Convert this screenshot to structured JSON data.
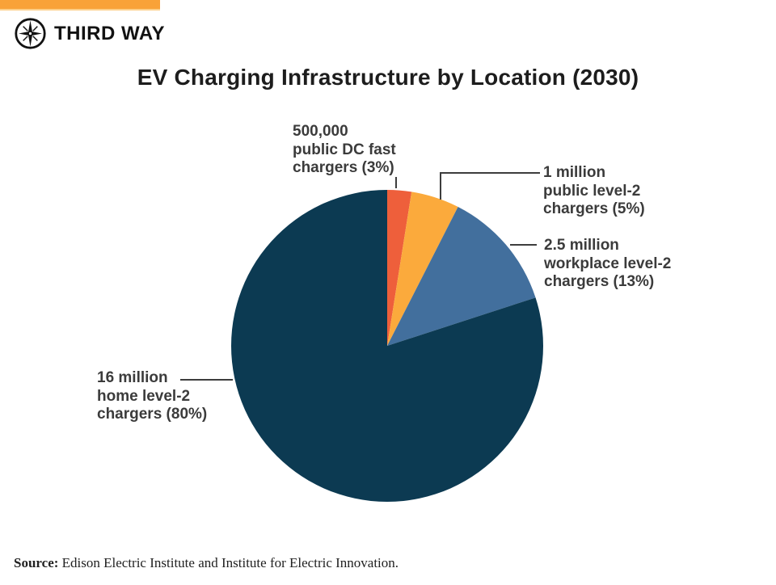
{
  "brand": {
    "logo_text": "THIRD WAY",
    "top_bar_color": "#f9a238",
    "logo_color": "#121212"
  },
  "title": "EV Charging Infrastructure by Location (2030)",
  "chart_data": {
    "type": "pie",
    "title": "EV Charging Infrastructure by Location (2030)",
    "start_angle_deg": 0,
    "direction": "clockwise",
    "legend_position": "none (direct callout labels with leader lines)",
    "total_value": 20000000,
    "slices": [
      {
        "name": "public-dc-fast-chargers",
        "value": 500000,
        "percent": 2.5,
        "display_percent": "3%",
        "color": "#ee5f3b",
        "label_lines": [
          "500,000",
          "public DC fast",
          "chargers (3%)"
        ]
      },
      {
        "name": "public-level2-chargers",
        "value": 1000000,
        "percent": 5,
        "display_percent": "5%",
        "color": "#fbaa3c",
        "label_lines": [
          "1 million",
          "public level-2",
          "chargers (5%)"
        ]
      },
      {
        "name": "workplace-level2-chargers",
        "value": 2500000,
        "percent": 12.5,
        "display_percent": "13%",
        "color": "#426f9d",
        "label_lines": [
          "2.5 million",
          "workplace level-2",
          "chargers (13%)"
        ]
      },
      {
        "name": "home-level2-chargers",
        "value": 16000000,
        "percent": 80,
        "display_percent": "80%",
        "color": "#0c3a52",
        "label_lines": [
          "16 million",
          "home level-2",
          "chargers (80%)"
        ]
      }
    ]
  },
  "source": {
    "prefix": "Source:",
    "text": " Edison Electric Institute and Institute for Electric Innovation."
  }
}
